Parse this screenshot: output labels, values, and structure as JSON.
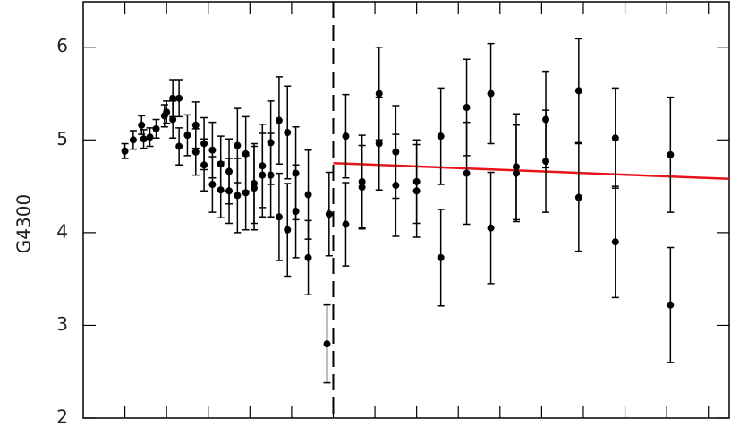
{
  "chart_data": {
    "type": "scatter",
    "y_label": "G4300",
    "xlim": [
      0,
      15.5
    ],
    "xticks": [
      1,
      2,
      3,
      4,
      5,
      6,
      7,
      8,
      9,
      10,
      11,
      12,
      13,
      14,
      15
    ],
    "ylim": [
      2,
      6.49
    ],
    "yticks": [
      2,
      3,
      4,
      5,
      6
    ],
    "divider_x": 6,
    "fit_line": {
      "x": [
        6,
        15.5
      ],
      "values": [
        4.75,
        4.58
      ],
      "color": "#e8141a"
    },
    "series": [
      {
        "color": "#000000",
        "x": [
          1.0,
          1.2,
          1.4,
          1.45,
          1.6,
          1.75,
          1.95,
          2.0,
          2.15,
          2.15,
          2.3,
          2.3,
          2.5,
          2.7,
          2.7,
          2.9,
          2.9,
          3.1,
          3.1,
          3.3,
          3.3,
          3.5,
          3.5,
          3.7,
          3.7,
          3.9,
          3.9,
          4.1,
          4.1,
          4.3,
          4.3,
          4.5,
          4.5,
          4.7,
          4.7,
          4.9,
          4.9,
          5.1,
          5.1,
          5.4,
          5.4,
          5.9,
          5.85,
          6.3,
          6.3,
          6.69,
          6.69,
          7.1,
          7.1,
          7.5,
          7.5,
          8.0,
          8.0,
          8.58,
          8.58,
          9.2,
          9.2,
          9.78,
          9.78,
          10.39,
          10.39,
          11.1,
          11.1,
          11.89,
          11.89,
          12.77,
          12.77,
          14.09,
          14.09
        ],
        "values": [
          4.88,
          5.0,
          5.16,
          5.01,
          5.03,
          5.12,
          5.26,
          5.3,
          5.45,
          5.22,
          5.45,
          4.93,
          5.05,
          5.16,
          4.87,
          4.96,
          4.73,
          4.89,
          4.52,
          4.74,
          4.46,
          4.66,
          4.45,
          4.94,
          4.4,
          4.85,
          4.43,
          4.53,
          4.48,
          4.72,
          4.62,
          4.97,
          4.62,
          5.21,
          4.17,
          5.08,
          4.03,
          4.64,
          4.23,
          4.41,
          3.73,
          4.2,
          2.8,
          5.04,
          4.09,
          4.55,
          4.49,
          5.5,
          4.96,
          4.87,
          4.51,
          4.55,
          4.45,
          5.04,
          3.73,
          5.35,
          4.64,
          5.5,
          4.05,
          4.71,
          4.64,
          5.22,
          4.77,
          5.53,
          4.38,
          5.02,
          3.9,
          4.84,
          3.22
        ],
        "errors": [
          0.08,
          0.1,
          0.1,
          0.1,
          0.1,
          0.1,
          0.12,
          0.12,
          0.2,
          0.2,
          0.2,
          0.2,
          0.22,
          0.25,
          0.25,
          0.28,
          0.28,
          0.3,
          0.3,
          0.3,
          0.3,
          0.35,
          0.35,
          0.4,
          0.4,
          0.4,
          0.4,
          0.43,
          0.45,
          0.45,
          0.45,
          0.45,
          0.45,
          0.47,
          0.47,
          0.5,
          0.5,
          0.5,
          0.5,
          0.48,
          0.4,
          0.45,
          0.42,
          0.45,
          0.45,
          0.5,
          0.45,
          0.5,
          0.5,
          0.5,
          0.55,
          0.45,
          0.5,
          0.52,
          0.52,
          0.52,
          0.55,
          0.54,
          0.6,
          0.57,
          0.52,
          0.52,
          0.55,
          0.56,
          0.58,
          0.54,
          0.6,
          0.62,
          0.62
        ]
      }
    ]
  }
}
